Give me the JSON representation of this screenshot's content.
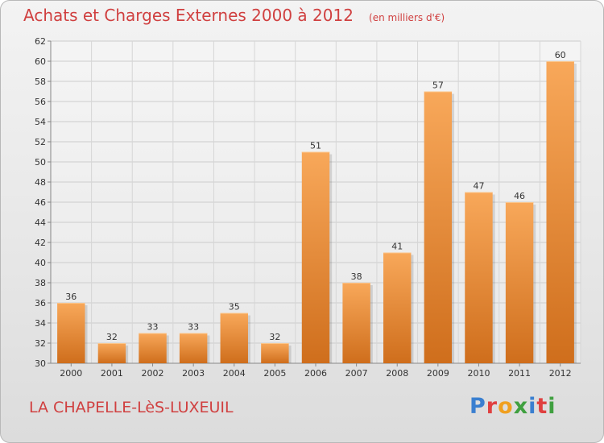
{
  "header": {
    "title": "Achats et Charges Externes 2000 à 2012",
    "subtitle": "(en milliers d'€)"
  },
  "footer": {
    "location": "LA CHAPELLE-LèS-LUXEUIL",
    "brand": "Proxiti"
  },
  "colors": {
    "title": "#d04040",
    "bar_light": "#f8a85a",
    "bar_dark": "#cf6e1c",
    "brand_letters": [
      "#3a7fd0",
      "#e04040",
      "#f0a020",
      "#40a040",
      "#3a7fd0",
      "#e04040",
      "#40a040"
    ]
  },
  "chart_data": {
    "type": "bar",
    "title": "Achats et Charges Externes 2000 à 2012",
    "subtitle": "(en milliers d'€)",
    "categories": [
      "2000",
      "2001",
      "2002",
      "2003",
      "2004",
      "2005",
      "2006",
      "2007",
      "2008",
      "2009",
      "2010",
      "2011",
      "2012"
    ],
    "values": [
      36,
      32,
      33,
      33,
      35,
      32,
      51,
      38,
      41,
      57,
      47,
      46,
      60
    ],
    "ylim": [
      30,
      62
    ],
    "yticks": [
      30,
      32,
      34,
      36,
      38,
      40,
      42,
      44,
      46,
      48,
      50,
      52,
      54,
      56,
      58,
      60,
      62
    ],
    "grid": true,
    "data_labels": true
  }
}
